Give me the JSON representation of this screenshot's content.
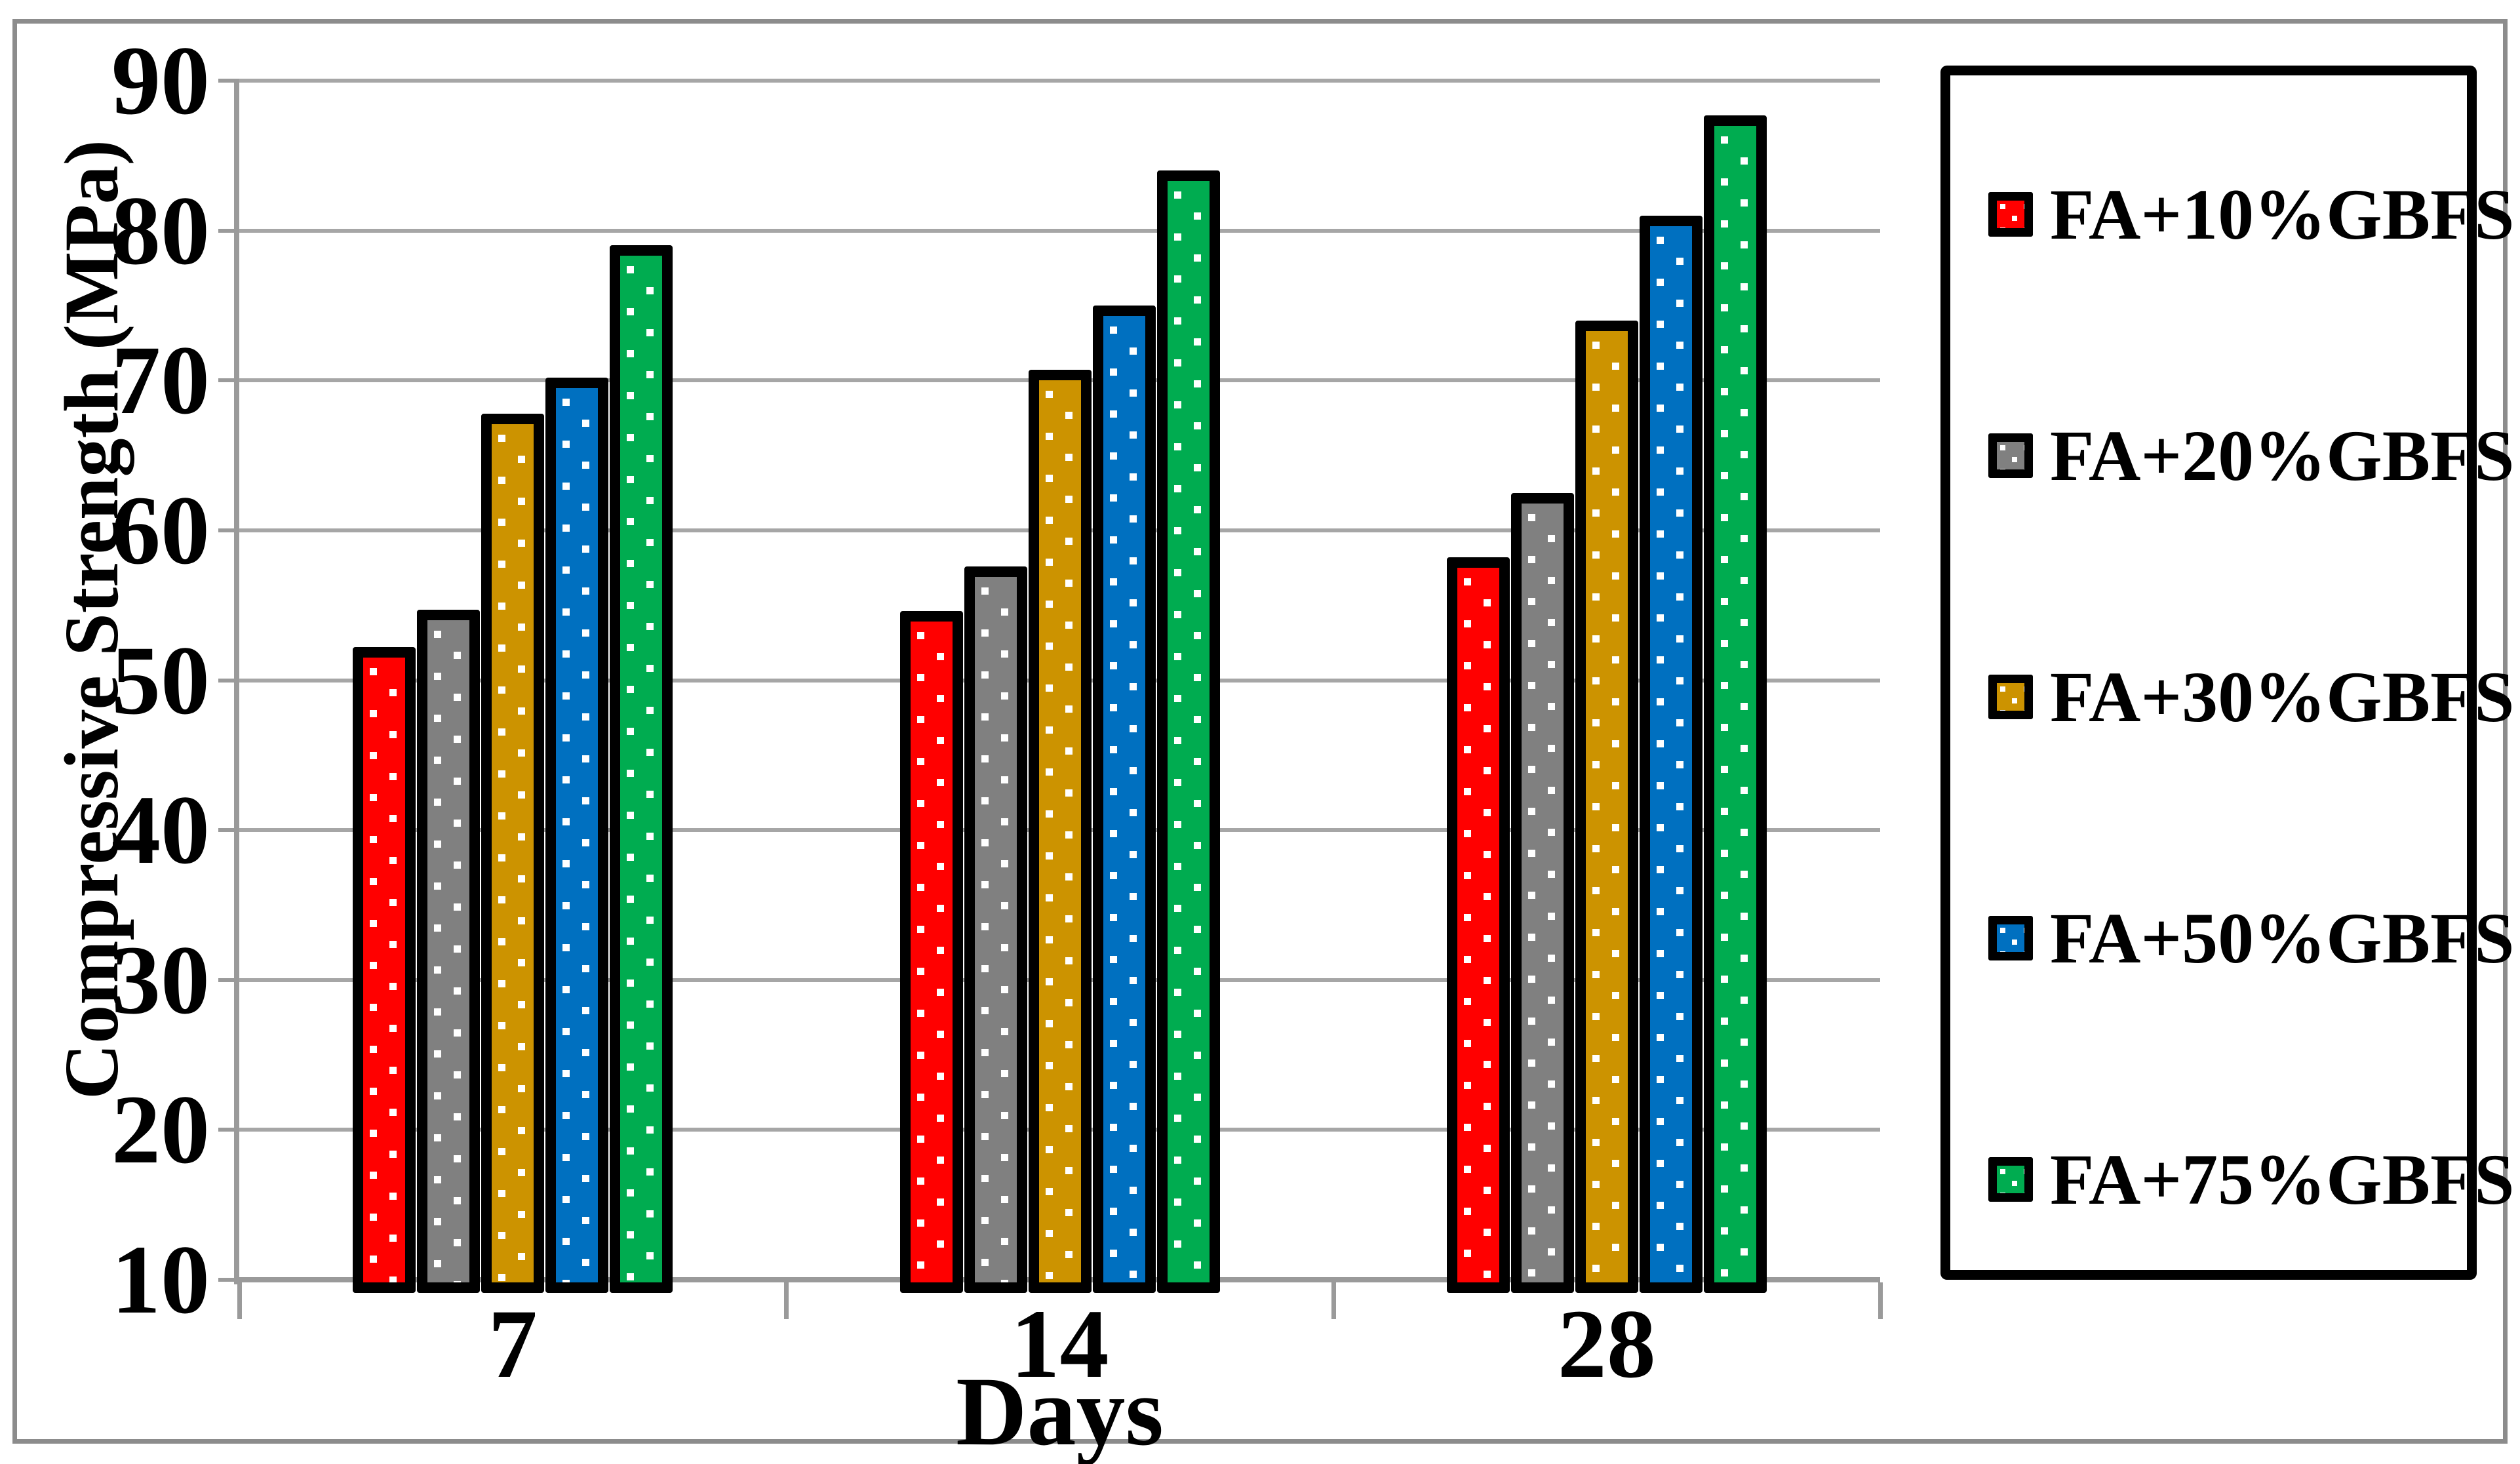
{
  "figure": {
    "y_axis_title": "Compressive Strength (MPa)",
    "x_axis_title": "Days"
  },
  "chart_data": {
    "type": "bar",
    "title": "",
    "xlabel": "Days",
    "ylabel": "Compressive Strength (MPa)",
    "categories": [
      "7",
      "14",
      "28"
    ],
    "series": [
      {
        "name": "FA+10%GBFS",
        "color": "#FF0000",
        "values": [
          52.2,
          54.6,
          58.2
        ]
      },
      {
        "name": "FA+20%GBFS",
        "color": "#808080",
        "values": [
          54.7,
          57.6,
          62.5
        ]
      },
      {
        "name": "FA+30%GBFS",
        "color": "#CC9300",
        "values": [
          67.8,
          70.7,
          74.0
        ]
      },
      {
        "name": "FA+50%GBFS",
        "color": "#0070C0",
        "values": [
          70.2,
          75.0,
          81.0
        ]
      },
      {
        "name": "FA+75%GBFS",
        "color": "#00AC50",
        "values": [
          79.0,
          84.0,
          87.7
        ]
      }
    ],
    "ylim": [
      10,
      90
    ],
    "yticks": [
      "90",
      "80",
      "70",
      "60",
      "50",
      "40",
      "30",
      "20",
      "10"
    ],
    "grid": true,
    "legend_position": "right",
    "bar_pattern": "white-dots-on-color-with-black-border",
    "gridline_color": "#A6A6A6",
    "axis_color": "#9A9A9A",
    "frame_color": "#8C8C8C"
  }
}
